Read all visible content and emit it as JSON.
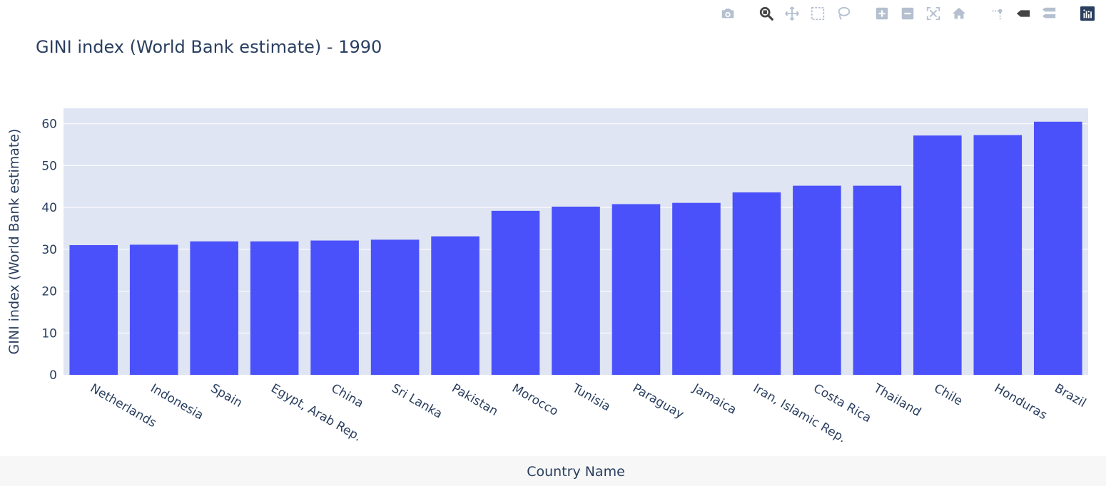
{
  "modebar": {
    "buttons": [
      {
        "name": "camera-icon"
      },
      {
        "name": "zoom-icon"
      },
      {
        "name": "pan-icon"
      },
      {
        "name": "box-select-icon"
      },
      {
        "name": "lasso-select-icon"
      },
      {
        "name": "zoom-in-icon"
      },
      {
        "name": "zoom-out-icon"
      },
      {
        "name": "autoscale-icon"
      },
      {
        "name": "reset-axes-icon"
      },
      {
        "name": "spike-lines-icon"
      },
      {
        "name": "hover-closest-icon"
      },
      {
        "name": "hover-compare-icon"
      },
      {
        "name": "plotly-logo-icon"
      }
    ]
  },
  "colors": {
    "bar": "#4b51fa",
    "plot_bg": "#dfe5f2",
    "grid": "#ffffff",
    "text": "#2a3f5f",
    "page_bottom": "#f7f7f7"
  },
  "chart_data": {
    "type": "bar",
    "title": "GINI index (World Bank estimate) - 1990",
    "xlabel": "Country Name",
    "ylabel": "GINI index (World Bank estimate)",
    "categories": [
      "Netherlands",
      "Indonesia",
      "Spain",
      "Egypt, Arab Rep.",
      "China",
      "Sri Lanka",
      "Pakistan",
      "Morocco",
      "Tunisia",
      "Paraguay",
      "Jamaica",
      "Iran, Islamic Rep.",
      "Costa Rica",
      "Thailand",
      "Chile",
      "Honduras",
      "Brazil"
    ],
    "values": [
      31.0,
      31.1,
      31.9,
      31.9,
      32.1,
      32.3,
      33.1,
      39.2,
      40.2,
      40.8,
      41.1,
      43.6,
      45.2,
      45.2,
      57.2,
      57.3,
      60.5
    ],
    "yticks": [
      0,
      10,
      20,
      30,
      40,
      50,
      60
    ],
    "ylim": [
      0,
      63.7
    ],
    "grid": true,
    "legend": false
  }
}
